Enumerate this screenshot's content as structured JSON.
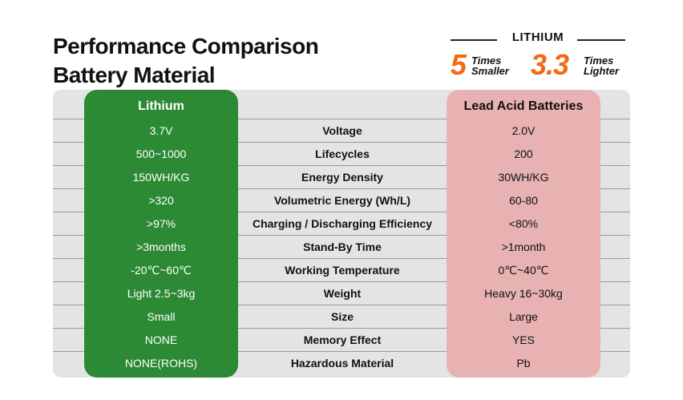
{
  "title": {
    "line1": "Performance Comparison",
    "line2": "Battery Material"
  },
  "badge": {
    "title": "LITHIUM",
    "stats": [
      {
        "number": "5",
        "line1": "Times",
        "line2": "Smaller"
      },
      {
        "number": "3.3",
        "line1": "Times",
        "line2": "Lighter"
      }
    ]
  },
  "colors": {
    "lithium_column": "#2d8a34",
    "lead_acid_column": "#e8b2b2",
    "accent": "#f26a12",
    "table_background": "#e4e4e4"
  },
  "table": {
    "headers": {
      "lithium": "Lithium",
      "lead_acid": "Lead Acid Batteries"
    },
    "rows": [
      {
        "lithium": "3.7V",
        "metric": "Voltage",
        "lead_acid": "2.0V"
      },
      {
        "lithium": "500~1000",
        "metric": "Lifecycles",
        "lead_acid": "200"
      },
      {
        "lithium": "150WH/KG",
        "metric": "Energy Density",
        "lead_acid": "30WH/KG"
      },
      {
        "lithium": ">320",
        "metric": "Volumetric Energy (Wh/L)",
        "lead_acid": "60-80"
      },
      {
        "lithium": ">97%",
        "metric": "Charging / Discharging Efficiency",
        "lead_acid": "<80%"
      },
      {
        "lithium": ">3months",
        "metric": "Stand-By Time",
        "lead_acid": ">1month"
      },
      {
        "lithium": "-20℃~60℃",
        "metric": "Working Temperature",
        "lead_acid": "0℃~40℃"
      },
      {
        "lithium": "Light 2.5~3kg",
        "metric": "Weight",
        "lead_acid": "Heavy 16~30kg"
      },
      {
        "lithium": "Small",
        "metric": "Size",
        "lead_acid": "Large"
      },
      {
        "lithium": "NONE",
        "metric": "Memory Effect",
        "lead_acid": "YES"
      },
      {
        "lithium": "NONE(ROHS)",
        "metric": "Hazardous Material",
        "lead_acid": "Pb"
      }
    ]
  }
}
